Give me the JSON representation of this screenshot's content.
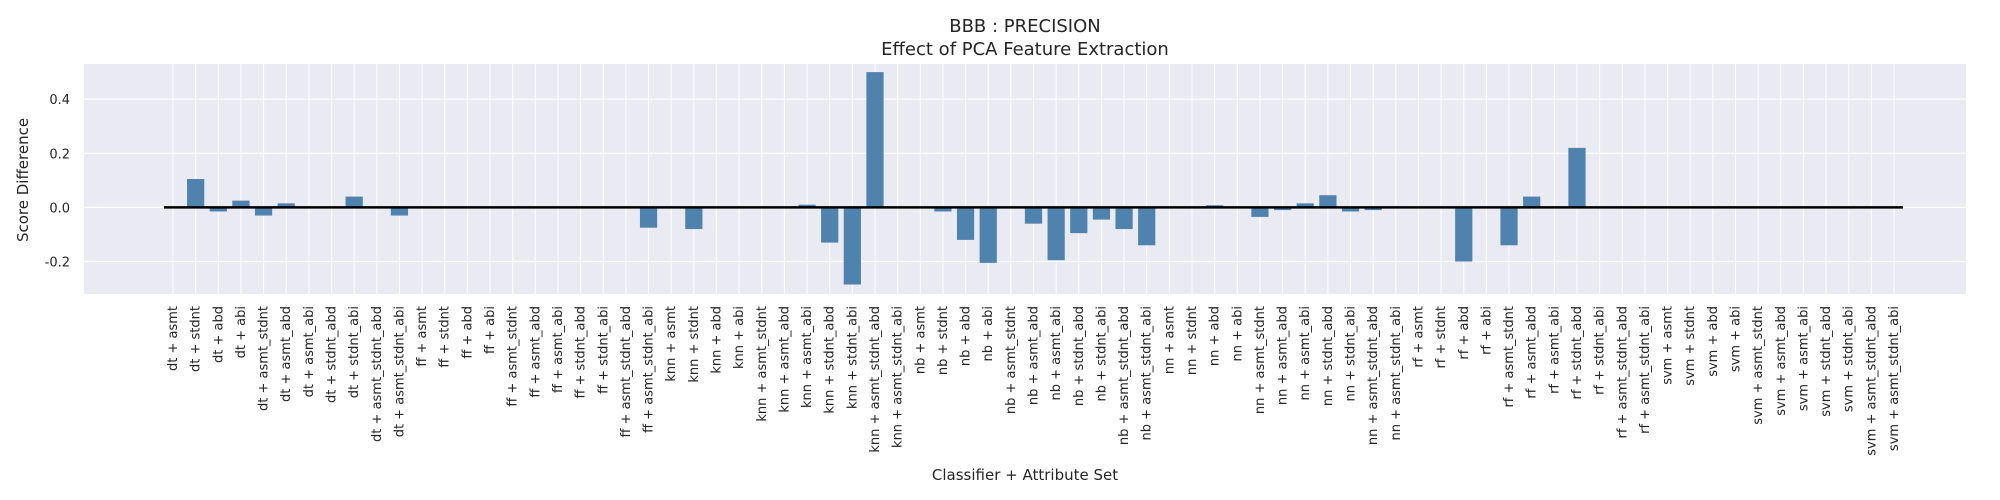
{
  "chart_data": {
    "type": "bar",
    "title": "BBB : PRECISION",
    "subtitle": "Effect of PCA Feature Extraction",
    "xlabel": "Classifier + Attribute Set",
    "ylabel": "Score Difference",
    "ylim": [
      -0.32,
      0.53
    ],
    "yticks": [
      -0.2,
      0.0,
      0.2,
      0.4
    ],
    "grid": true,
    "bar_color": "#4f82ac",
    "background_color": "#eaeaf2",
    "zero_line_color": "#000000",
    "categories": [
      "dt + asmt",
      "dt + stdnt",
      "dt + abd",
      "dt + abi",
      "dt + asmt_stdnt",
      "dt + asmt_abd",
      "dt + asmt_abi",
      "dt + stdnt_abd",
      "dt + stdnt_abi",
      "dt + asmt_stdnt_abd",
      "dt + asmt_stdnt_abi",
      "ff + asmt",
      "ff + stdnt",
      "ff + abd",
      "ff + abi",
      "ff + asmt_stdnt",
      "ff + asmt_abd",
      "ff + asmt_abi",
      "ff + stdnt_abd",
      "ff + stdnt_abi",
      "ff + asmt_stdnt_abd",
      "ff + asmt_stdnt_abi",
      "knn + asmt",
      "knn + stdnt",
      "knn + abd",
      "knn + abi",
      "knn + asmt_stdnt",
      "knn + asmt_abd",
      "knn + asmt_abi",
      "knn + stdnt_abd",
      "knn + stdnt_abi",
      "knn + asmt_stdnt_abd",
      "knn + asmt_stdnt_abi",
      "nb + asmt",
      "nb + stdnt",
      "nb + abd",
      "nb + abi",
      "nb + asmt_stdnt",
      "nb + asmt_abd",
      "nb + asmt_abi",
      "nb + stdnt_abd",
      "nb + stdnt_abi",
      "nb + asmt_stdnt_abd",
      "nb + asmt_stdnt_abi",
      "nn + asmt",
      "nn + stdnt",
      "nn + abd",
      "nn + abi",
      "nn + asmt_stdnt",
      "nn + asmt_abd",
      "nn + asmt_abi",
      "nn + stdnt_abd",
      "nn + stdnt_abi",
      "nn + asmt_stdnt_abd",
      "nn + asmt_stdnt_abi",
      "rf + asmt",
      "rf + stdnt",
      "rf + abd",
      "rf + abi",
      "rf + asmt_stdnt",
      "rf + asmt_abd",
      "rf + asmt_abi",
      "rf + stdnt_abd",
      "rf + stdnt_abi",
      "rf + asmt_stdnt_abd",
      "rf + asmt_stdnt_abi",
      "svm + asmt",
      "svm + stdnt",
      "svm + abd",
      "svm + abi",
      "svm + asmt_stdnt",
      "svm + asmt_abd",
      "svm + asmt_abi",
      "svm + stdnt_abd",
      "svm + stdnt_abi",
      "svm + asmt_stdnt_abd",
      "svm + asmt_stdnt_abi"
    ],
    "values": [
      0.0,
      0.105,
      -0.015,
      0.025,
      -0.03,
      0.015,
      0.0,
      0.0,
      0.04,
      0.0,
      -0.03,
      0.0,
      0.0,
      0.0,
      0.0,
      0.0,
      0.0,
      0.0,
      0.0,
      0.0,
      0.0,
      -0.075,
      0.0,
      -0.08,
      0.0,
      0.0,
      0.0,
      0.0,
      0.01,
      -0.13,
      -0.285,
      0.5,
      0.0,
      0.0,
      -0.015,
      -0.12,
      -0.205,
      0.0,
      -0.06,
      -0.195,
      -0.095,
      -0.045,
      -0.08,
      -0.14,
      0.0,
      0.0,
      0.008,
      0.0,
      -0.035,
      -0.01,
      0.015,
      0.045,
      -0.015,
      -0.01,
      0.0,
      0.0,
      0.0,
      -0.2,
      0.0,
      -0.14,
      0.04,
      0.0,
      0.22,
      0.0,
      0.0,
      0.0,
      0.0,
      0.0,
      0.0,
      0.0,
      0.0,
      0.0,
      0.0,
      0.0,
      0.0,
      0.0,
      0.0
    ]
  }
}
